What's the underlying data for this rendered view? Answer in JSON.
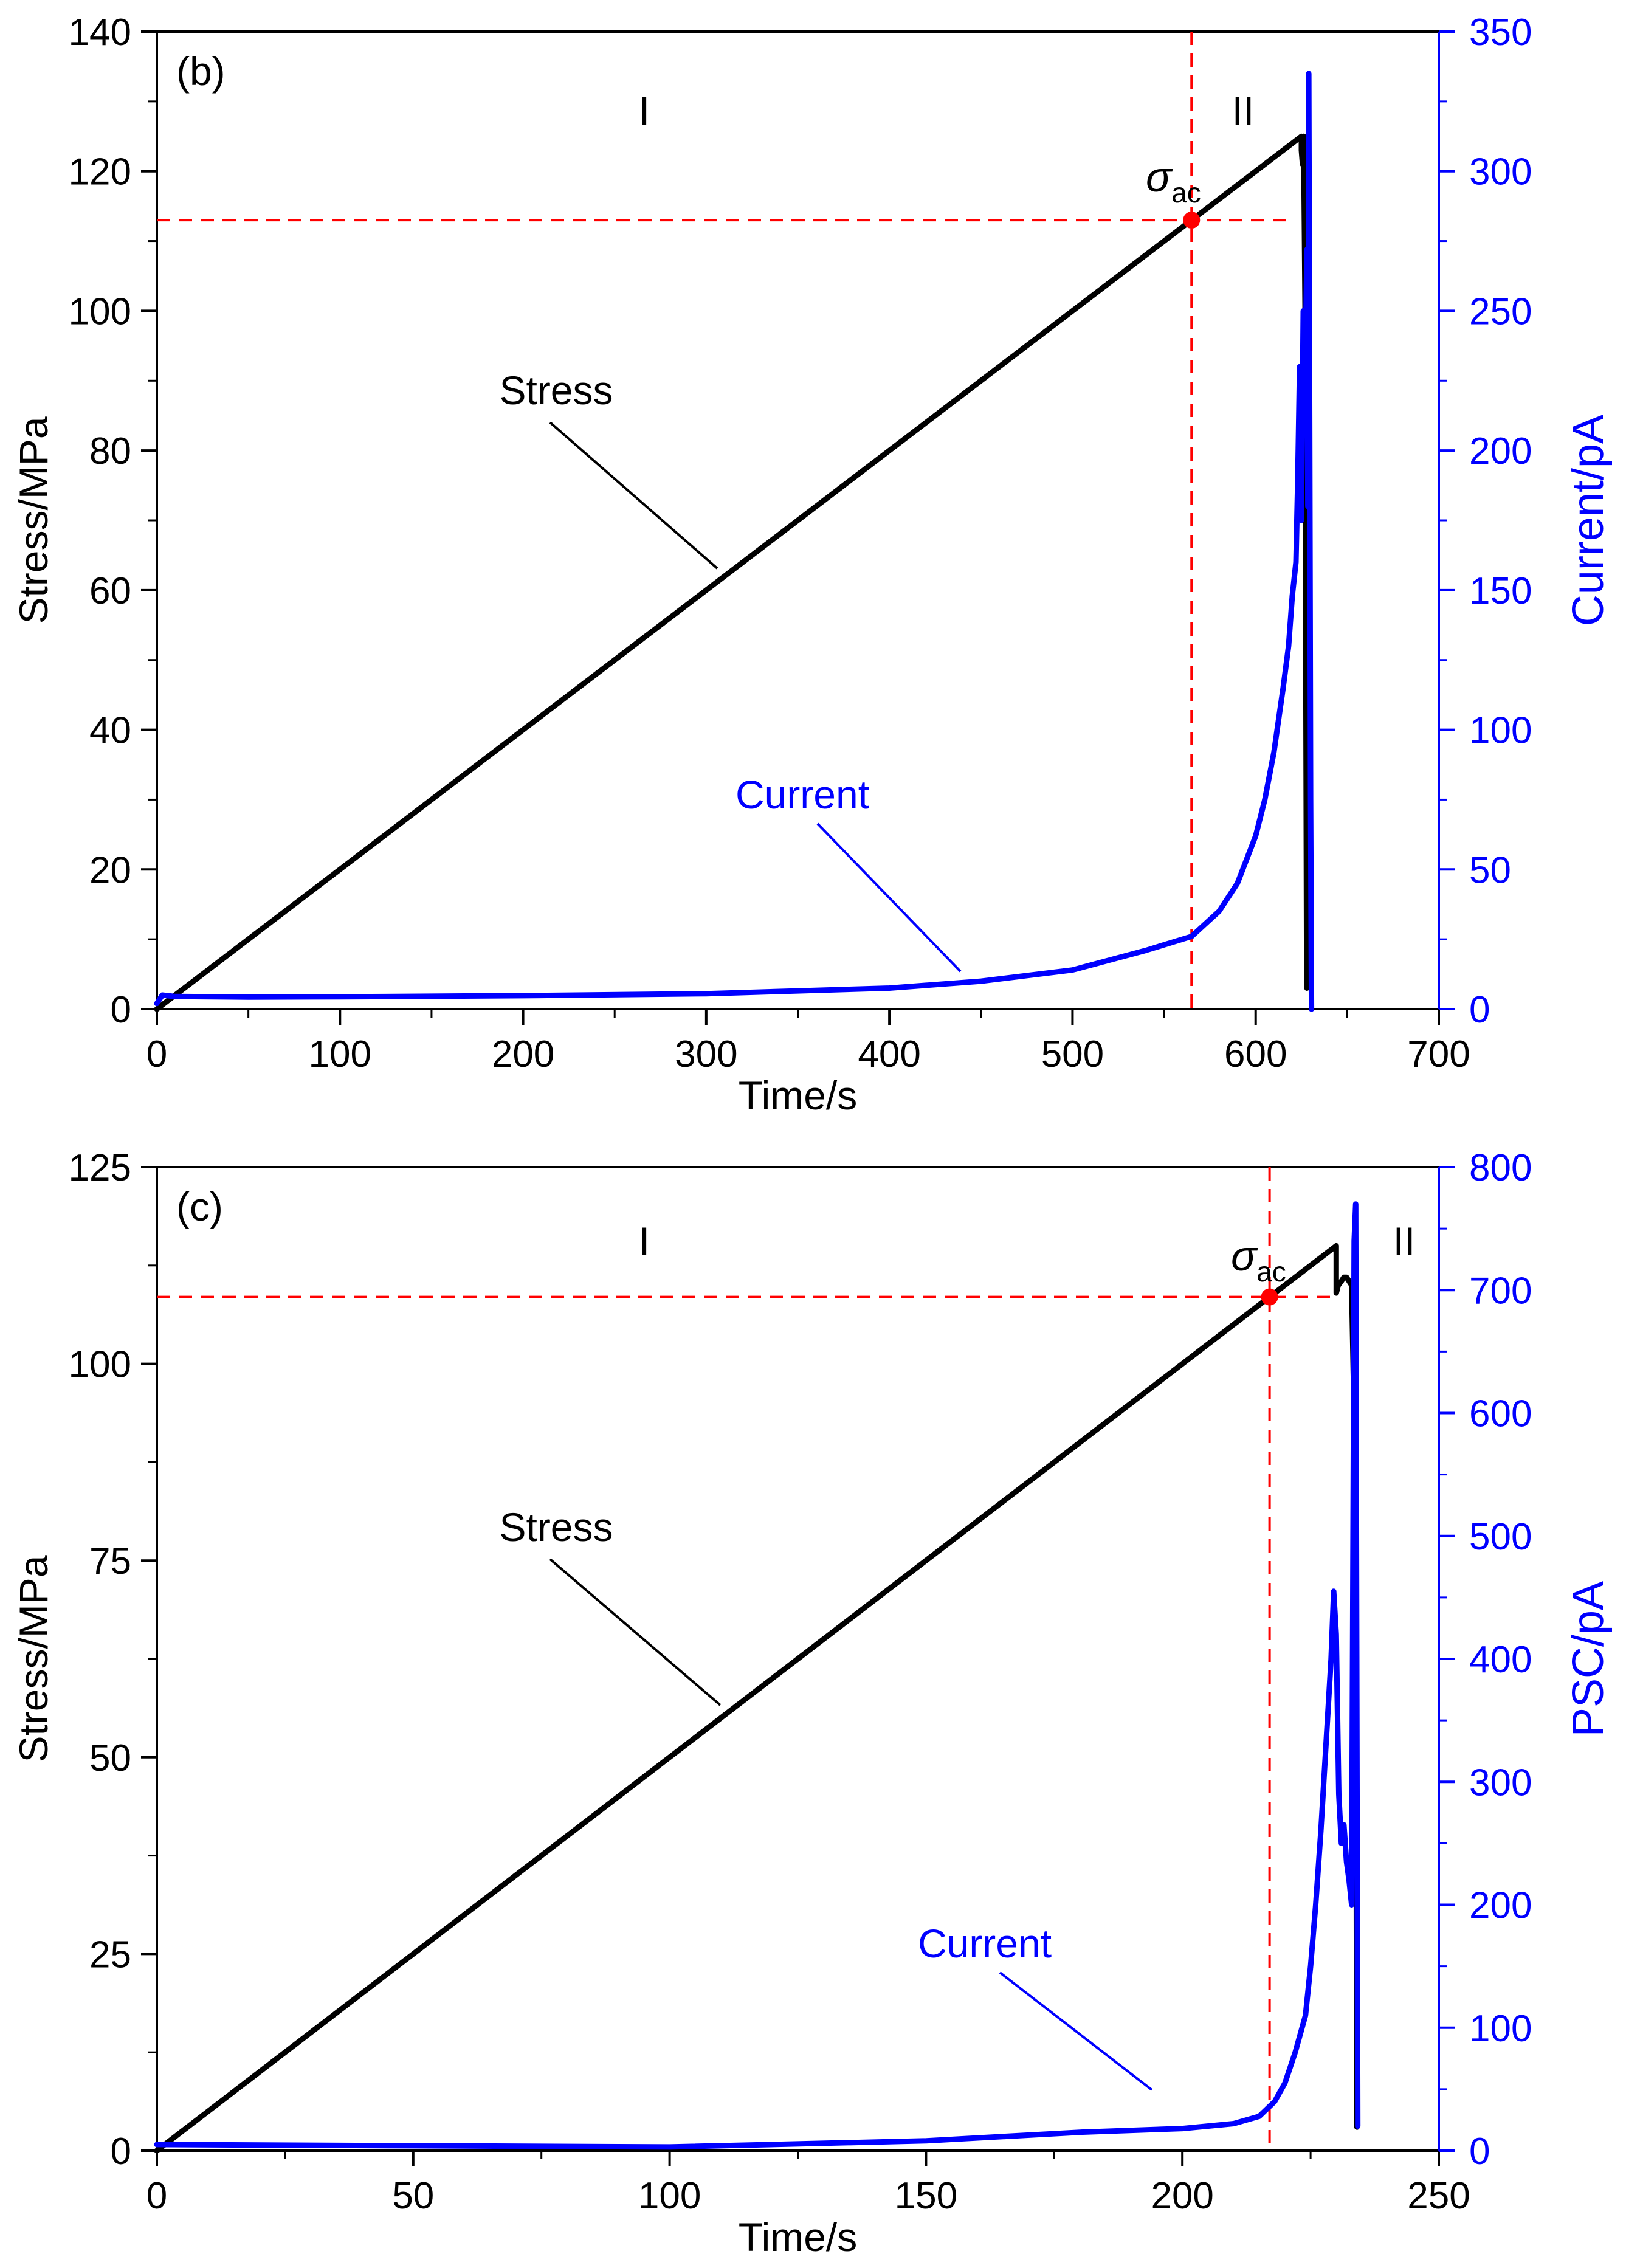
{
  "colors": {
    "stress": "#000000",
    "current": "#0000ff",
    "marker": "#ff0000",
    "axis_left": "#000000",
    "axis_right": "#0000ff"
  },
  "chart_data": [
    {
      "type": "line",
      "panel_label": "(b)",
      "xlabel": "Time/s",
      "ylabel": "Stress/MPa",
      "y2label": "Current/pA",
      "xlim": [
        0,
        700
      ],
      "ylim": [
        0,
        140
      ],
      "y2lim": [
        0,
        350
      ],
      "xticks": [
        0,
        100,
        200,
        300,
        400,
        500,
        600,
        700
      ],
      "yticks": [
        0,
        20,
        40,
        60,
        80,
        100,
        120,
        140
      ],
      "y2ticks": [
        0,
        50,
        100,
        150,
        200,
        250,
        300,
        350
      ],
      "stage_labels": [
        "I",
        "II"
      ],
      "sigma_ac": {
        "symbol": "σ",
        "subscript": "ac",
        "time": 565,
        "stress": 113
      },
      "annotations": {
        "stress_label": "Stress",
        "current_label": "Current"
      },
      "series": [
        {
          "name": "Stress",
          "axis": "left",
          "x": [
            0,
            625,
            625,
            625.6,
            626.2,
            627,
            627.4,
            627.8,
            628
          ],
          "y": [
            0,
            125,
            123,
            121,
            125,
            100,
            50,
            10,
            3
          ]
        },
        {
          "name": "Current",
          "axis": "right",
          "x": [
            0,
            3,
            10,
            50,
            100,
            200,
            300,
            350,
            400,
            450,
            500,
            540,
            565,
            580,
            590,
            600,
            605,
            610,
            615,
            618,
            620,
            622,
            623,
            624,
            625,
            626,
            627,
            628,
            628.5,
            629,
            629.5,
            630,
            630.5
          ],
          "y": [
            2,
            5,
            4.5,
            4.3,
            4.4,
            4.8,
            5.5,
            6.5,
            7.5,
            10,
            14,
            21,
            26,
            35,
            45,
            62,
            75,
            92,
            115,
            130,
            148,
            160,
            190,
            230,
            175,
            250,
            225,
            272,
            180,
            335,
            210,
            75,
            0
          ]
        }
      ]
    },
    {
      "type": "line",
      "panel_label": "(c)",
      "xlabel": "Time/s",
      "ylabel": "Stress/MPa",
      "y2label": "PSC/pA",
      "xlim": [
        0,
        250
      ],
      "ylim": [
        0,
        125
      ],
      "y2lim": [
        0,
        800
      ],
      "xticks": [
        0,
        50,
        100,
        150,
        200,
        250
      ],
      "yticks": [
        0,
        25,
        50,
        75,
        100,
        125
      ],
      "y2ticks": [
        0,
        100,
        200,
        300,
        400,
        500,
        600,
        700,
        800
      ],
      "stage_labels": [
        "I",
        "II"
      ],
      "sigma_ac": {
        "symbol": "σ",
        "subscript": "ac",
        "time": 217,
        "stress": 108.5
      },
      "annotations": {
        "stress_label": "Stress",
        "current_label": "Current"
      },
      "series": [
        {
          "name": "Stress",
          "axis": "left",
          "x": [
            0,
            230,
            230,
            230.4,
            231,
            231.5,
            232,
            232.5,
            233,
            233.6,
            233.9,
            234,
            234.05
          ],
          "y": [
            0,
            115,
            109,
            110,
            110.5,
            111,
            111,
            110.5,
            110,
            90,
            40,
            5,
            3
          ]
        },
        {
          "name": "Current",
          "axis": "right",
          "x": [
            0,
            50,
            100,
            150,
            180,
            200,
            210,
            215,
            218,
            220,
            222,
            224,
            225,
            226,
            227,
            228,
            229,
            229.5,
            230,
            230.5,
            231,
            231.5,
            232,
            232.5,
            233,
            233.5,
            233.8,
            234,
            234.2
          ],
          "y": [
            5,
            4,
            3,
            8,
            15,
            18,
            22,
            28,
            40,
            55,
            80,
            110,
            150,
            200,
            260,
            330,
            400,
            455,
            420,
            290,
            250,
            265,
            235,
            220,
            200,
            740,
            770,
            400,
            20
          ]
        }
      ]
    }
  ]
}
